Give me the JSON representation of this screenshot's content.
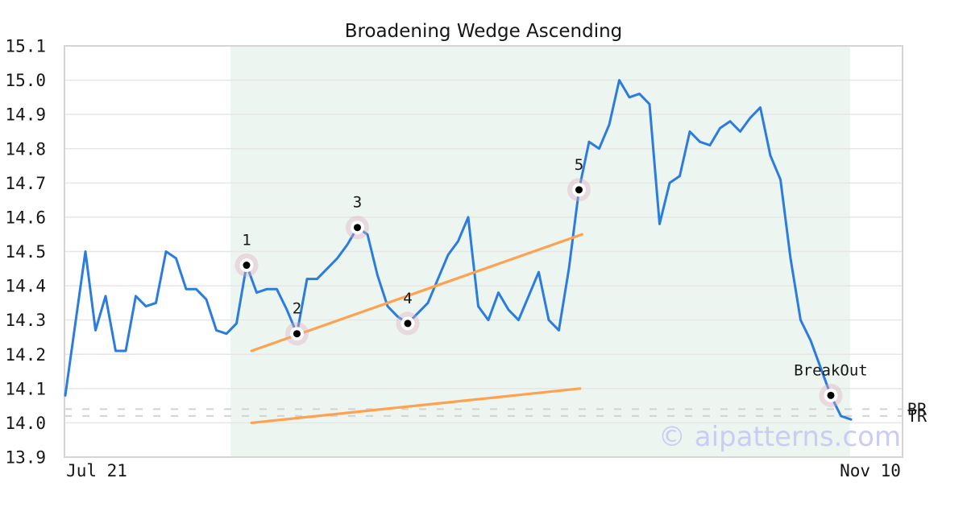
{
  "title": {
    "text": "Broadening Wedge Ascending"
  },
  "watermark": {
    "text": "© aipatterns.com"
  },
  "colors": {
    "line_blue": "#2b7ce0",
    "trendline_orange": "#ffa14e",
    "zone_green": "#ecf5f0",
    "gridline": "#e6e6e6",
    "plot_border": "#d5d5d5",
    "dashed_level": "#d2d2d2",
    "marker_halo": "rgba(224,170,188,0.38)",
    "marker_dot": "#000000",
    "marker_ring": "#ffffff",
    "text": "#161616",
    "watermark": "#c9cdf3",
    "background": "#ffffff"
  },
  "chart_data": {
    "type": "line",
    "title": "Broadening Wedge Ascending",
    "ylim": [
      13.9,
      15.1
    ],
    "grid": true,
    "y_ticks": [
      "15.1",
      "15.0",
      "14.9",
      "14.8",
      "14.7",
      "14.6",
      "14.5",
      "14.4",
      "14.3",
      "14.2",
      "14.1",
      "14.0",
      "13.9"
    ],
    "x_ticks": [
      {
        "label": "Jul 21",
        "position": "left"
      },
      {
        "label": "Nov 10",
        "position": "right"
      }
    ],
    "series": [
      {
        "name": "price",
        "values": [
          14.08,
          14.29,
          14.5,
          14.27,
          14.37,
          14.21,
          14.21,
          14.37,
          14.34,
          14.35,
          14.5,
          14.48,
          14.39,
          14.39,
          14.36,
          14.27,
          14.26,
          14.29,
          14.46,
          14.38,
          14.39,
          14.39,
          14.33,
          14.26,
          14.42,
          14.42,
          14.45,
          14.48,
          14.52,
          14.57,
          14.55,
          14.43,
          14.34,
          14.31,
          14.29,
          14.32,
          14.35,
          14.42,
          14.49,
          14.53,
          14.6,
          14.34,
          14.3,
          14.38,
          14.33,
          14.3,
          14.37,
          14.44,
          14.3,
          14.27,
          14.45,
          14.68,
          14.82,
          14.8,
          14.87,
          15.0,
          14.95,
          14.96,
          14.93,
          14.58,
          14.7,
          14.72,
          14.85,
          14.82,
          14.81,
          14.86,
          14.88,
          14.85,
          14.89,
          14.92,
          14.78,
          14.71,
          14.48,
          14.3,
          14.24,
          14.16,
          14.08,
          14.02,
          14.01
        ]
      }
    ],
    "pattern_markers": [
      {
        "label": "1",
        "index": 18,
        "value": 14.46
      },
      {
        "label": "2",
        "index": 23,
        "value": 14.26
      },
      {
        "label": "3",
        "index": 29,
        "value": 14.57
      },
      {
        "label": "4",
        "index": 34,
        "value": 14.29
      },
      {
        "label": "5",
        "index": 51,
        "value": 14.68
      },
      {
        "label": "BreakOut",
        "index": 76,
        "value": 14.08
      }
    ],
    "levels": [
      {
        "label": "BR",
        "value": 14.04
      },
      {
        "label": "TR",
        "value": 14.02
      }
    ],
    "trendlines": [
      {
        "name": "upper",
        "from": {
          "index": 18.5,
          "value": 14.21
        },
        "to": {
          "index": 51.3,
          "value": 14.55
        }
      },
      {
        "name": "lower",
        "from": {
          "index": 18.5,
          "value": 14.0
        },
        "to": {
          "index": 51.1,
          "value": 14.1
        }
      }
    ],
    "pattern_zone": {
      "from_index": 16.4,
      "to_index": 77.9
    }
  }
}
